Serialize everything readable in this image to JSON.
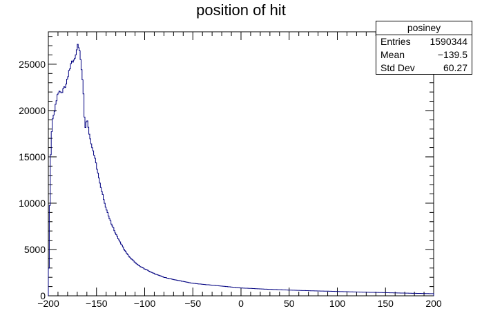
{
  "chart_data": {
    "type": "histogram",
    "title": "position of hit",
    "xlabel": "",
    "ylabel": "",
    "xlim": [
      -200,
      200
    ],
    "ylim": [
      0,
      28500
    ],
    "bin_width": 1,
    "x_ticks": [
      -200,
      -150,
      -100,
      -50,
      0,
      50,
      100,
      150,
      200
    ],
    "x_tick_labels": [
      "−200",
      "−150",
      "−100",
      "−50",
      "0",
      "50",
      "100",
      "150",
      "200"
    ],
    "y_ticks": [
      0,
      5000,
      10000,
      15000,
      20000,
      25000
    ],
    "y_tick_labels": [
      "0",
      "5000",
      "10000",
      "15000",
      "20000",
      "25000"
    ],
    "grid": false,
    "line_color": "#000080",
    "shape_points": [
      [
        -200,
        0
      ],
      [
        -199,
        6000
      ],
      [
        -198,
        13500
      ],
      [
        -197,
        16800
      ],
      [
        -196,
        18800
      ],
      [
        -194,
        19800
      ],
      [
        -192,
        20800
      ],
      [
        -190,
        21900
      ],
      [
        -188,
        22000
      ],
      [
        -186,
        22000
      ],
      [
        -184,
        22300
      ],
      [
        -182,
        22700
      ],
      [
        -180,
        23600
      ],
      [
        -178,
        24500
      ],
      [
        -176,
        25200
      ],
      [
        -174,
        25300
      ],
      [
        -172,
        25900
      ],
      [
        -170,
        26900
      ],
      [
        -169,
        27000
      ],
      [
        -168,
        26700
      ],
      [
        -167,
        26200
      ],
      [
        -166,
        25000
      ],
      [
        -165,
        24000
      ],
      [
        -164,
        22600
      ],
      [
        -163,
        20800
      ],
      [
        -162,
        17800
      ],
      [
        -161,
        18300
      ],
      [
        -160,
        19300
      ],
      [
        -159,
        18700
      ],
      [
        -158,
        17600
      ],
      [
        -155,
        16300
      ],
      [
        -152,
        15000
      ],
      [
        -150,
        14000
      ],
      [
        -145,
        11500
      ],
      [
        -140,
        9400
      ],
      [
        -135,
        7900
      ],
      [
        -130,
        6700
      ],
      [
        -125,
        5700
      ],
      [
        -120,
        4800
      ],
      [
        -115,
        4100
      ],
      [
        -110,
        3600
      ],
      [
        -105,
        3200
      ],
      [
        -100,
        2900
      ],
      [
        -90,
        2400
      ],
      [
        -80,
        2000
      ],
      [
        -70,
        1750
      ],
      [
        -60,
        1550
      ],
      [
        -50,
        1350
      ],
      [
        -40,
        1250
      ],
      [
        -30,
        1150
      ],
      [
        -20,
        1050
      ],
      [
        -10,
        950
      ],
      [
        0,
        850
      ],
      [
        25,
        720
      ],
      [
        50,
        620
      ],
      [
        75,
        540
      ],
      [
        100,
        470
      ],
      [
        125,
        400
      ],
      [
        150,
        340
      ],
      [
        175,
        280
      ],
      [
        199,
        230
      ],
      [
        200,
        230
      ]
    ],
    "stats_box": {
      "name": "posiney",
      "rows": [
        {
          "label": "Entries",
          "value": "1590344"
        },
        {
          "label": "Mean",
          "value": "−139.5"
        },
        {
          "label": "Std Dev",
          "value": "60.27"
        }
      ]
    }
  }
}
